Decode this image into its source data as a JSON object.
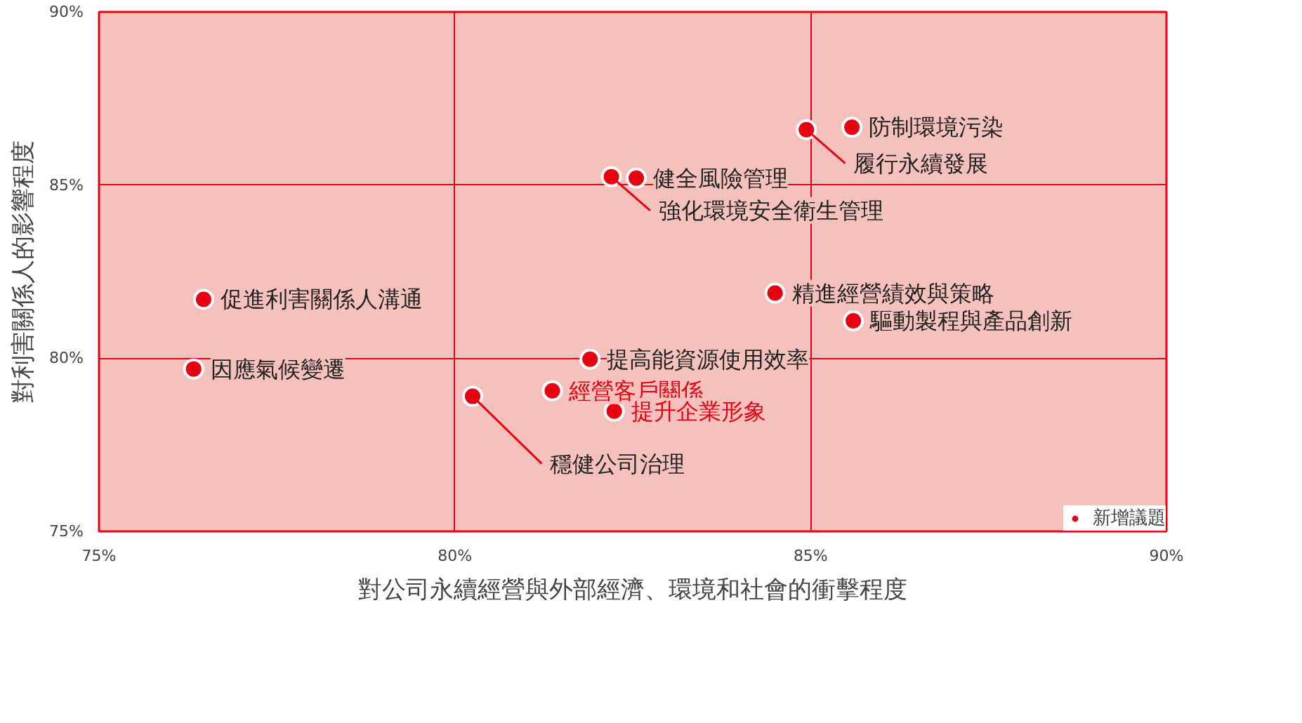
{
  "chart_data": {
    "type": "scatter",
    "xlabel": "對公司永續經營與外部經濟、環境和社會的衝擊程度",
    "ylabel": "對利害關係人的影響程度",
    "xlim": [
      75,
      90
    ],
    "ylim": [
      75,
      90
    ],
    "xticks": [
      {
        "value": 75,
        "label": "75%"
      },
      {
        "value": 80,
        "label": "80%"
      },
      {
        "value": 85,
        "label": "85%"
      },
      {
        "value": 90,
        "label": "90%"
      }
    ],
    "yticks": [
      {
        "value": 75,
        "label": "75%"
      },
      {
        "value": 80,
        "label": "80%"
      },
      {
        "value": 85,
        "label": "85%"
      },
      {
        "value": 90,
        "label": "90%"
      }
    ],
    "grid": true,
    "marker": "circle",
    "legend": "bottom right",
    "series": [
      {
        "color": "#e60012",
        "x": [
          85.58,
          84.94,
          82.55,
          82.2,
          76.47,
          76.33,
          84.5,
          85.6,
          81.9,
          80.25
        ],
        "values": [
          86.67,
          86.6,
          85.2,
          85.24,
          81.7,
          79.69,
          81.88,
          81.08,
          79.97,
          78.9
        ]
      },
      {
        "name": "新增議題",
        "color": "#e60012",
        "x": [
          81.37,
          82.24
        ],
        "values": [
          79.06,
          78.47
        ]
      }
    ],
    "annotations": [
      {
        "text": "防制環境污染",
        "x": 85.58,
        "y": 86.67
      },
      {
        "text": "健全風險管理",
        "x": 82.55,
        "y": 85.2
      },
      {
        "text": "促進利害關係人溝通",
        "x": 76.47,
        "y": 81.7
      },
      {
        "text": "因應氣候變遷",
        "x": 76.33,
        "y": 79.69
      },
      {
        "text": "精進經營績效與策略",
        "x": 84.5,
        "y": 81.88
      },
      {
        "text": "驅動製程與產品創新",
        "x": 85.6,
        "y": 81.08
      },
      {
        "text": "提高能資源使用效率",
        "x": 81.9,
        "y": 79.97
      },
      {
        "text": "經營客戶關係",
        "x": 81.37,
        "y": 79.06
      },
      {
        "text": "提升企業形象",
        "x": 82.24,
        "y": 78.47
      },
      {
        "text": "履行永續發展",
        "x": 84.94,
        "y": 86.6
      },
      {
        "text": "強化環境安全衛生管理",
        "x": 82.2,
        "y": 85.24
      },
      {
        "text": "穩健公司治理",
        "x": 80.25,
        "y": 78.9
      }
    ]
  }
}
